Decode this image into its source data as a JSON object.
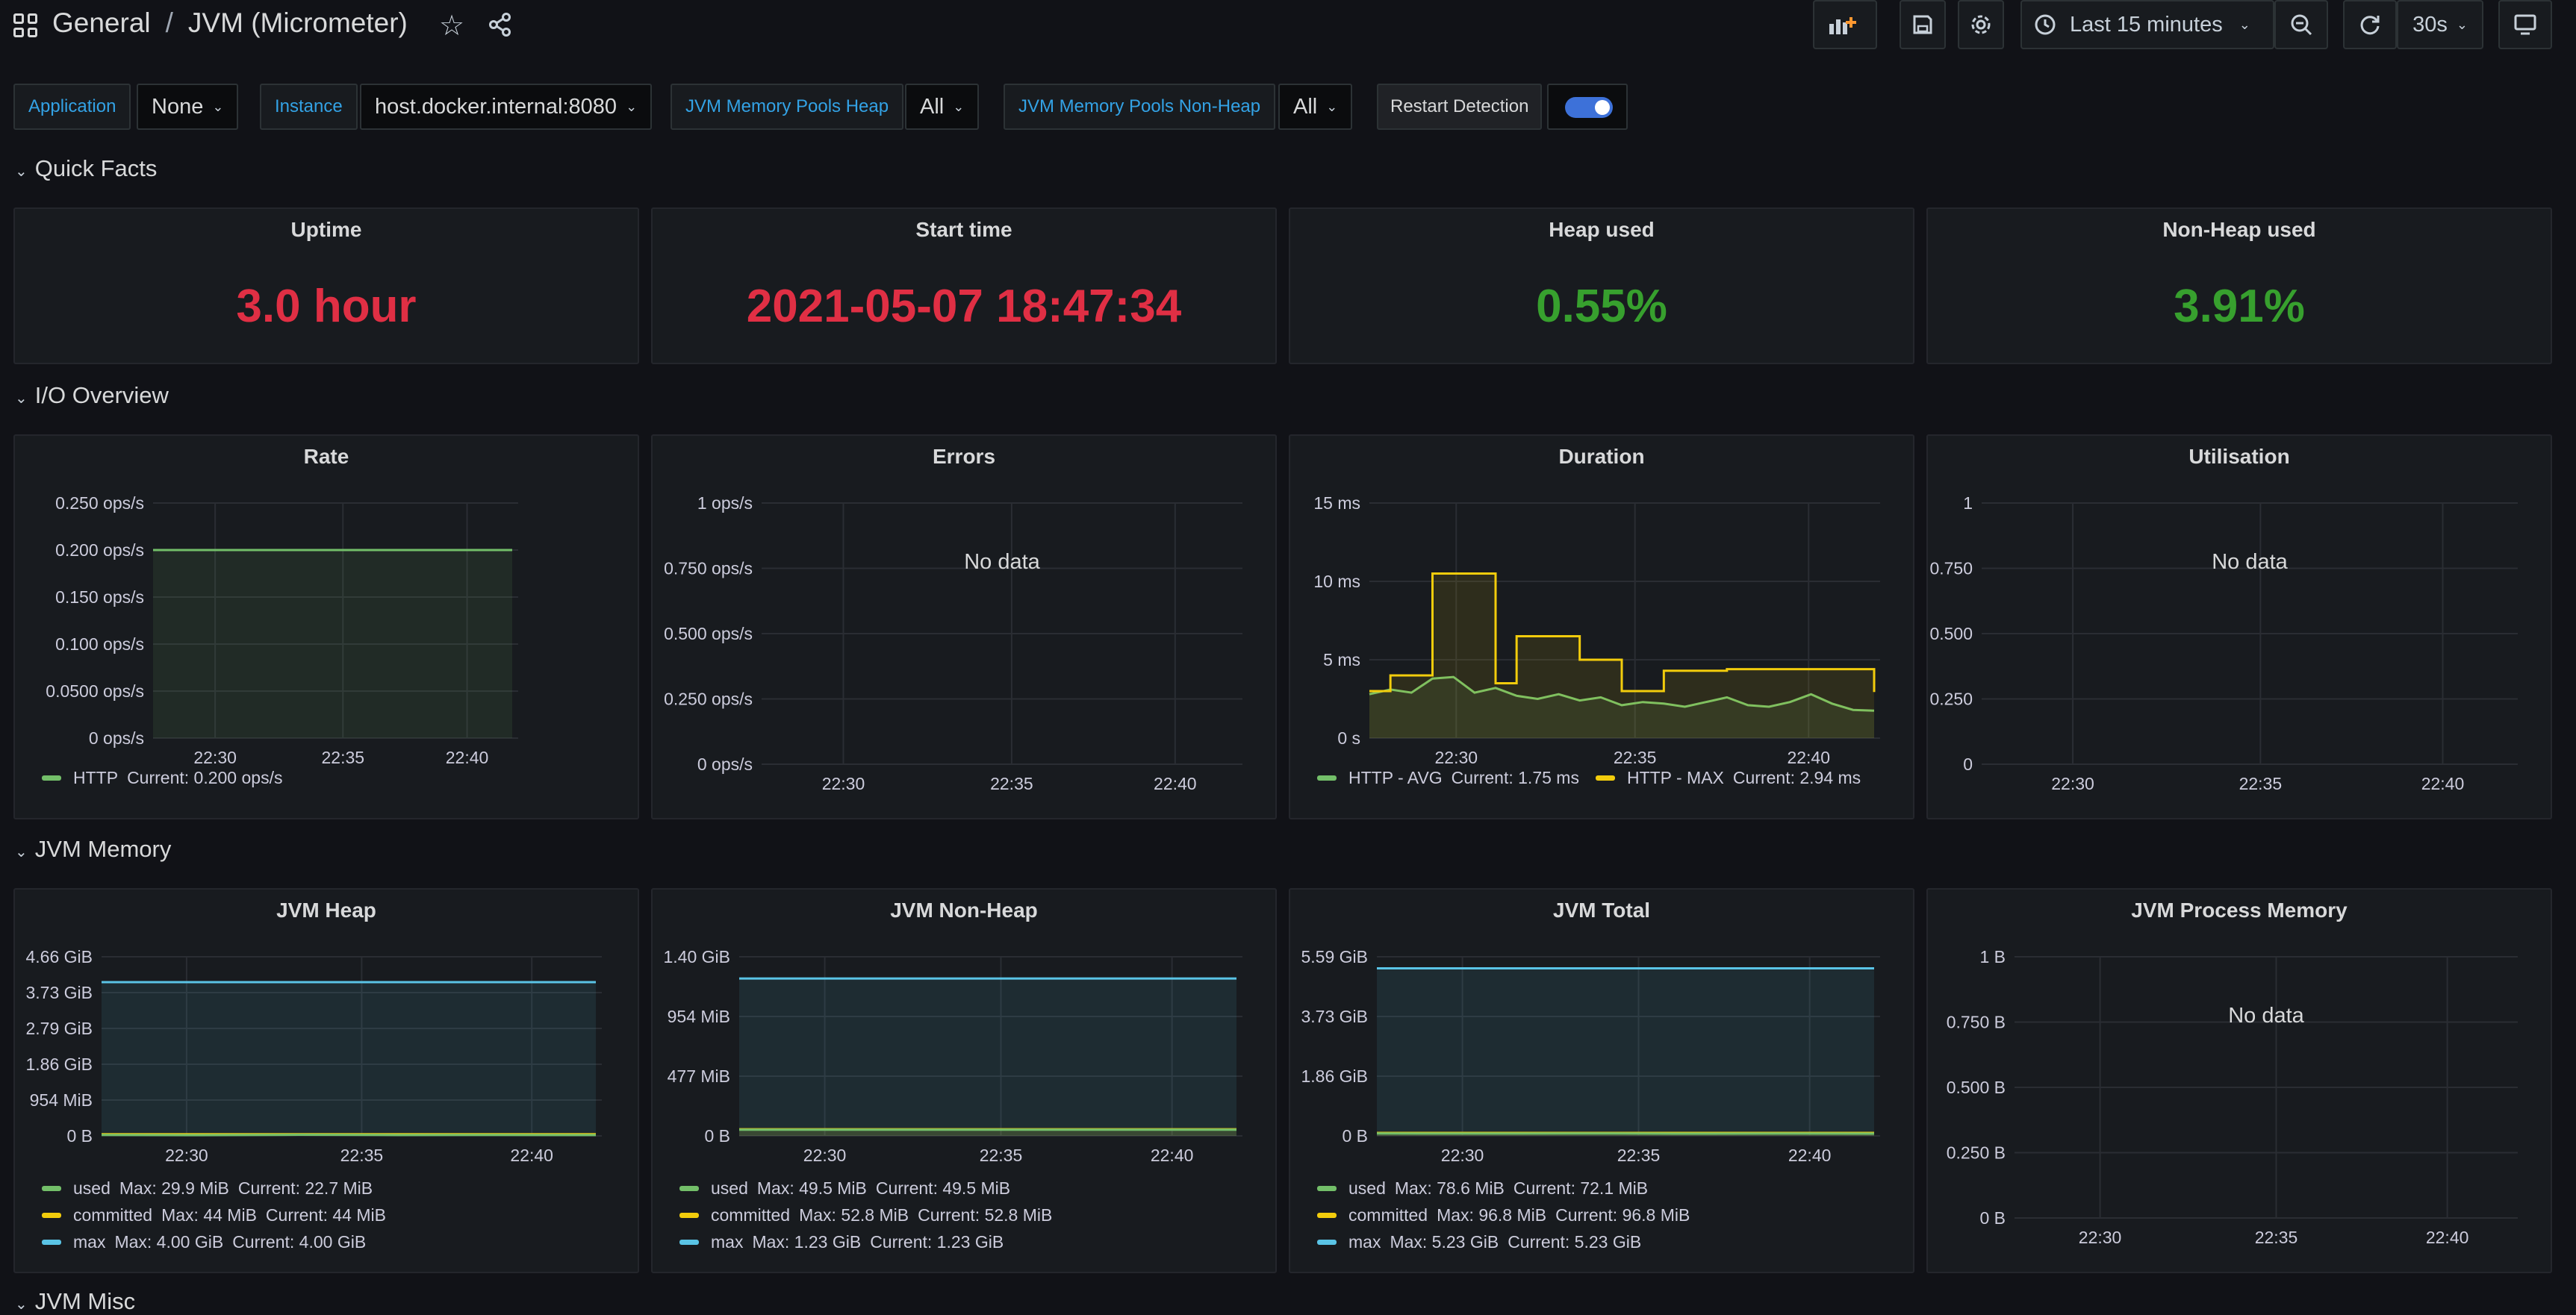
{
  "header": {
    "breadcrumb_folder": "General",
    "separator": "/",
    "dashboard_title": "JVM (Micrometer)",
    "time_range": "Last 15 minutes",
    "refresh_interval": "30s"
  },
  "variables": {
    "application_label": "Application",
    "application_value": "None",
    "instance_label": "Instance",
    "instance_value": "host.docker.internal:8080",
    "heap_pools_label": "JVM Memory Pools Heap",
    "heap_pools_value": "All",
    "nonheap_pools_label": "JVM Memory Pools Non-Heap",
    "nonheap_pools_value": "All",
    "restart_label": "Restart Detection",
    "restart_enabled": true
  },
  "rows": {
    "quick_facts": "Quick Facts",
    "io_overview": "I/O Overview",
    "jvm_memory": "JVM Memory",
    "jvm_misc": "JVM Misc"
  },
  "quick_facts": [
    {
      "title": "Uptime",
      "value": "3.0 hour",
      "color": "#e02f44"
    },
    {
      "title": "Start time",
      "value": "2021-05-07 18:47:34",
      "color": "#e02f44"
    },
    {
      "title": "Heap used",
      "value": "0.55%",
      "color": "#37a02e"
    },
    {
      "title": "Non-Heap used",
      "value": "3.91%",
      "color": "#37a02e"
    }
  ],
  "no_data_text": "No data",
  "colors": {
    "green": "#73bf69",
    "yellow": "#f2cc0c",
    "blue": "#5ac4e6",
    "red": "#e02f44"
  },
  "chart_data": [
    {
      "id": "rate",
      "type": "line",
      "title": "Rate",
      "x_ticks": [
        "22:30",
        "22:35",
        "22:40"
      ],
      "y_ticks": [
        "0.250 ops/s",
        "0.200 ops/s",
        "0.150 ops/s",
        "0.100 ops/s",
        "0.0500 ops/s",
        "0 ops/s"
      ],
      "ylim": [
        0,
        0.25
      ],
      "series": [
        {
          "name": "HTTP",
          "color": "#73bf69",
          "values": [
            0.2,
            0.2,
            0.2,
            0.2,
            0.2,
            0.2,
            0.2,
            0.2,
            0.2,
            0.2,
            0.2,
            0.2,
            0.2,
            0.2,
            0.2
          ]
        }
      ],
      "legend": [
        {
          "name": "HTTP",
          "color": "#73bf69",
          "stats": "Current: 0.200 ops/s"
        }
      ]
    },
    {
      "id": "errors",
      "type": "line",
      "title": "Errors",
      "x_ticks": [
        "22:30",
        "22:35",
        "22:40"
      ],
      "y_ticks": [
        "1 ops/s",
        "0.750 ops/s",
        "0.500 ops/s",
        "0.250 ops/s",
        "0 ops/s"
      ],
      "ylim": [
        0,
        1
      ],
      "no_data": true,
      "series": [],
      "legend": []
    },
    {
      "id": "duration",
      "type": "line",
      "title": "Duration",
      "x_ticks": [
        "22:30",
        "22:35",
        "22:40"
      ],
      "y_ticks": [
        "15 ms",
        "10 ms",
        "5 ms",
        "0 s"
      ],
      "ylim": [
        0,
        15
      ],
      "series": [
        {
          "name": "HTTP - AVG",
          "color": "#73bf69",
          "values": [
            2.8,
            3.1,
            2.9,
            3.8,
            3.9,
            2.9,
            3.2,
            2.7,
            2.5,
            2.8,
            2.4,
            2.6,
            2.1,
            2.3,
            2.2,
            2.0,
            2.3,
            2.6,
            2.1,
            2.0,
            2.3,
            2.8,
            2.2,
            1.8,
            1.75
          ]
        },
        {
          "name": "HTTP - MAX",
          "color": "#f2cc0c",
          "values": [
            3.0,
            4.0,
            4.0,
            10.5,
            10.5,
            10.5,
            3.5,
            6.5,
            6.5,
            6.5,
            5.0,
            5.0,
            3.0,
            3.0,
            4.3,
            4.3,
            4.3,
            4.4,
            4.4,
            4.4,
            4.4,
            4.4,
            4.4,
            4.4,
            2.94
          ]
        }
      ],
      "legend": [
        {
          "name": "HTTP - AVG",
          "color": "#73bf69",
          "stats": "Current: 1.75 ms"
        },
        {
          "name": "HTTP - MAX",
          "color": "#f2cc0c",
          "stats": "Current: 2.94 ms"
        }
      ]
    },
    {
      "id": "utilisation",
      "type": "line",
      "title": "Utilisation",
      "x_ticks": [
        "22:30",
        "22:35",
        "22:40"
      ],
      "y_ticks": [
        "1",
        "0.750",
        "0.500",
        "0.250",
        "0"
      ],
      "ylim": [
        0,
        1
      ],
      "no_data": true,
      "series": [],
      "legend": []
    },
    {
      "id": "jvm_heap",
      "type": "area",
      "title": "JVM Heap",
      "x_ticks": [
        "22:30",
        "22:35",
        "22:40"
      ],
      "y_ticks": [
        "4.66 GiB",
        "3.73 GiB",
        "2.79 GiB",
        "1.86 GiB",
        "954 MiB",
        "0 B"
      ],
      "ylim": [
        0,
        4.66
      ],
      "series": [
        {
          "name": "max",
          "color": "#5ac4e6",
          "values": [
            4.0,
            4.0,
            4.0,
            4.0,
            4.0,
            4.0
          ]
        },
        {
          "name": "committed",
          "color": "#f2cc0c",
          "values": [
            0.043,
            0.043,
            0.043,
            0.043,
            0.043,
            0.043
          ]
        },
        {
          "name": "used",
          "color": "#73bf69",
          "values": [
            0.025,
            0.02,
            0.028,
            0.022,
            0.025,
            0.022
          ]
        }
      ],
      "legend": [
        {
          "name": "used",
          "color": "#73bf69",
          "stats": "Max: 29.9 MiB",
          "current": "Current: 22.7 MiB"
        },
        {
          "name": "committed",
          "color": "#f2cc0c",
          "stats": "Max: 44 MiB",
          "current": "Current: 44 MiB"
        },
        {
          "name": "max",
          "color": "#5ac4e6",
          "stats": "Max: 4.00 GiB",
          "current": "Current: 4.00 GiB"
        }
      ]
    },
    {
      "id": "jvm_nonheap",
      "type": "area",
      "title": "JVM Non-Heap",
      "x_ticks": [
        "22:30",
        "22:35",
        "22:40"
      ],
      "y_ticks": [
        "1.40 GiB",
        "954 MiB",
        "477 MiB",
        "0 B"
      ],
      "ylim": [
        0,
        1.4
      ],
      "series": [
        {
          "name": "max",
          "color": "#5ac4e6",
          "values": [
            1.23,
            1.23,
            1.23,
            1.23,
            1.23,
            1.23
          ]
        },
        {
          "name": "committed",
          "color": "#f2cc0c",
          "values": [
            0.0516,
            0.0516,
            0.0516,
            0.0516,
            0.0516,
            0.0516
          ]
        },
        {
          "name": "used",
          "color": "#73bf69",
          "values": [
            0.0483,
            0.0483,
            0.0483,
            0.0483,
            0.0483,
            0.0483
          ]
        }
      ],
      "legend": [
        {
          "name": "used",
          "color": "#73bf69",
          "stats": "Max: 49.5 MiB",
          "current": "Current: 49.5 MiB"
        },
        {
          "name": "committed",
          "color": "#f2cc0c",
          "stats": "Max: 52.8 MiB",
          "current": "Current: 52.8 MiB"
        },
        {
          "name": "max",
          "color": "#5ac4e6",
          "stats": "Max: 1.23 GiB",
          "current": "Current: 1.23 GiB"
        }
      ]
    },
    {
      "id": "jvm_total",
      "type": "area",
      "title": "JVM Total",
      "x_ticks": [
        "22:30",
        "22:35",
        "22:40"
      ],
      "y_ticks": [
        "5.59 GiB",
        "3.73 GiB",
        "1.86 GiB",
        "0 B"
      ],
      "ylim": [
        0,
        5.59
      ],
      "series": [
        {
          "name": "max",
          "color": "#5ac4e6",
          "values": [
            5.23,
            5.23,
            5.23,
            5.23,
            5.23,
            5.23
          ]
        },
        {
          "name": "committed",
          "color": "#f2cc0c",
          "values": [
            0.0945,
            0.0945,
            0.0945,
            0.0945,
            0.0945,
            0.0945
          ]
        },
        {
          "name": "used",
          "color": "#73bf69",
          "values": [
            0.075,
            0.072,
            0.077,
            0.07,
            0.073,
            0.07
          ]
        }
      ],
      "legend": [
        {
          "name": "used",
          "color": "#73bf69",
          "stats": "Max: 78.6 MiB",
          "current": "Current: 72.1 MiB"
        },
        {
          "name": "committed",
          "color": "#f2cc0c",
          "stats": "Max: 96.8 MiB",
          "current": "Current: 96.8 MiB"
        },
        {
          "name": "max",
          "color": "#5ac4e6",
          "stats": "Max: 5.23 GiB",
          "current": "Current: 5.23 GiB"
        }
      ]
    },
    {
      "id": "jvm_process_memory",
      "type": "line",
      "title": "JVM Process Memory",
      "x_ticks": [
        "22:30",
        "22:35",
        "22:40"
      ],
      "y_ticks": [
        "1 B",
        "0.750 B",
        "0.500 B",
        "0.250 B",
        "0 B"
      ],
      "ylim": [
        0,
        1
      ],
      "no_data": true,
      "series": [],
      "legend": []
    }
  ]
}
